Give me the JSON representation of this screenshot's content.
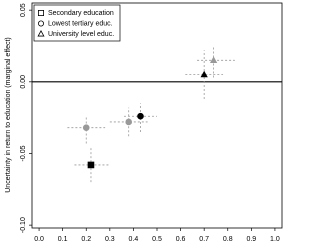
{
  "chart_data": {
    "type": "scatter",
    "y_label": "Uncertainty in return to education (marginal effect)",
    "xlim": [
      -0.03,
      1.03
    ],
    "ylim": [
      -0.102,
      0.055
    ],
    "xticks": [
      {
        "value": 0,
        "label": "0.0"
      },
      0.1,
      0.2,
      0.3,
      0.4,
      0.5,
      0.6,
      0.7,
      0.8,
      0.9,
      {
        "value": 1,
        "label": "1.0"
      }
    ],
    "yticks": [
      0.05,
      {
        "value": 0,
        "label": "0.00"
      },
      -0.05,
      {
        "value": -0.1,
        "label": "-0.10"
      }
    ],
    "hline": 0,
    "legend": "top-left",
    "errorbar_color": "#999999",
    "series": [
      {
        "name": "Secondary education",
        "marker": "square",
        "x": [
          0.22
        ],
        "values": [
          -0.058
        ],
        "colors": [
          "#000000"
        ],
        "x_low": [
          0.15
        ],
        "x_high": [
          0.3
        ],
        "y_low": [
          -0.07
        ],
        "y_high": [
          -0.045
        ]
      },
      {
        "name": "Lowest tertiary educ.",
        "marker": "circle",
        "x": [
          0.2,
          0.38,
          0.43
        ],
        "values": [
          -0.032,
          -0.028,
          -0.024
        ],
        "colors": [
          "#999999",
          "#999999",
          "#000000"
        ],
        "x_low": [
          0.12,
          0.3,
          0.36
        ],
        "x_high": [
          0.28,
          0.46,
          0.5
        ],
        "y_low": [
          -0.043,
          -0.038,
          -0.035
        ],
        "y_high": [
          -0.024,
          -0.018,
          -0.015
        ]
      },
      {
        "name": "University level educ.",
        "marker": "triangle",
        "x": [
          0.7,
          0.74
        ],
        "values": [
          0.005,
          0.015
        ],
        "colors": [
          "#000000",
          "#999999"
        ],
        "x_low": [
          0.62,
          0.67
        ],
        "x_high": [
          0.78,
          0.83
        ],
        "y_low": [
          -0.012,
          0.003
        ],
        "y_high": [
          0.022,
          0.025
        ]
      }
    ]
  }
}
